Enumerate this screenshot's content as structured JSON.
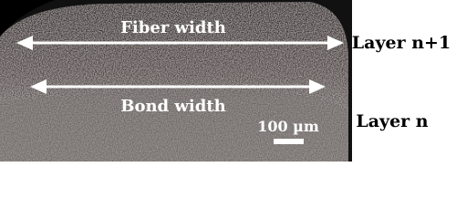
{
  "annotations": {
    "fiber_width": "Fiber width",
    "bond_width": "Bond width",
    "scale_bar": "100 µm"
  },
  "layers": {
    "upper": "Layer n+1",
    "lower": "Layer n"
  }
}
